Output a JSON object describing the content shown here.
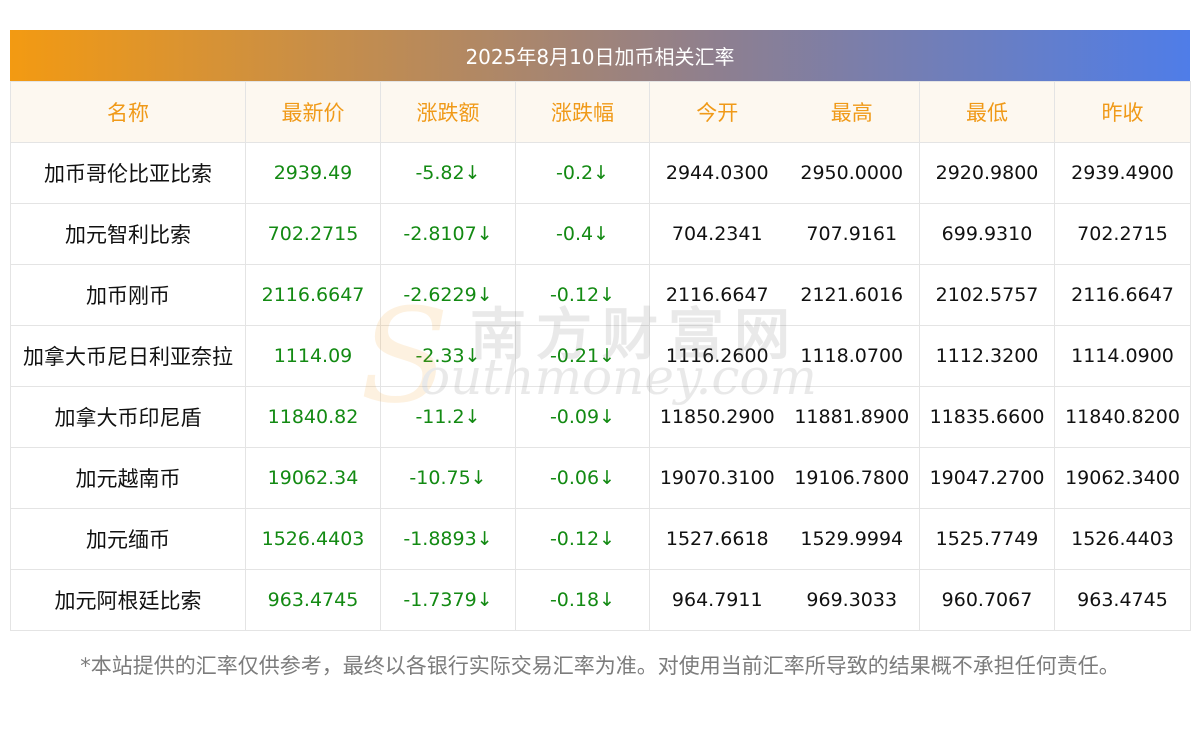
{
  "title": "2025年8月10日加币相关汇率",
  "headers": [
    "名称",
    "最新价",
    "涨跌额",
    "涨跌幅",
    "今开",
    "最高",
    "最低",
    "昨收"
  ],
  "rows": [
    {
      "name": "加币哥伦比亚比索",
      "latest": "2939.49",
      "change": "-5.82↓",
      "pct": "-0.2↓",
      "open": "2944.0300",
      "high": "2950.0000",
      "low": "2920.9800",
      "prev": "2939.4900"
    },
    {
      "name": "加元智利比索",
      "latest": "702.2715",
      "change": "-2.8107↓",
      "pct": "-0.4↓",
      "open": "704.2341",
      "high": "707.9161",
      "low": "699.9310",
      "prev": "702.2715"
    },
    {
      "name": "加币刚币",
      "latest": "2116.6647",
      "change": "-2.6229↓",
      "pct": "-0.12↓",
      "open": "2116.6647",
      "high": "2121.6016",
      "low": "2102.5757",
      "prev": "2116.6647"
    },
    {
      "name": "加拿大币尼日利亚奈拉",
      "latest": "1114.09",
      "change": "-2.33↓",
      "pct": "-0.21↓",
      "open": "1116.2600",
      "high": "1118.0700",
      "low": "1112.3200",
      "prev": "1114.0900"
    },
    {
      "name": "加拿大币印尼盾",
      "latest": "11840.82",
      "change": "-11.2↓",
      "pct": "-0.09↓",
      "open": "11850.2900",
      "high": "11881.8900",
      "low": "11835.6600",
      "prev": "11840.8200"
    },
    {
      "name": "加元越南币",
      "latest": "19062.34",
      "change": "-10.75↓",
      "pct": "-0.06↓",
      "open": "19070.3100",
      "high": "19106.7800",
      "low": "19047.2700",
      "prev": "19062.3400"
    },
    {
      "name": "加元缅币",
      "latest": "1526.4403",
      "change": "-1.8893↓",
      "pct": "-0.12↓",
      "open": "1527.6618",
      "high": "1529.9994",
      "low": "1525.7749",
      "prev": "1526.4403"
    },
    {
      "name": "加元阿根廷比索",
      "latest": "963.4745",
      "change": "-1.7379↓",
      "pct": "-0.18↓",
      "open": "964.7911",
      "high": "969.3033",
      "low": "960.7067",
      "prev": "963.4745"
    }
  ],
  "note": "*本站提供的汇率仅供参考，最终以各银行实际交易汇率为准。对使用当前汇率所导致的结果概不承担任何责任。",
  "watermark": {
    "top": "南方财富网",
    "bottom": "outhmoney.com",
    "letter": "S"
  },
  "colors": {
    "header_text": "#f09a19",
    "down_green": "#138a13",
    "banner_start": "#f39a12",
    "banner_end": "#4f7de8"
  }
}
